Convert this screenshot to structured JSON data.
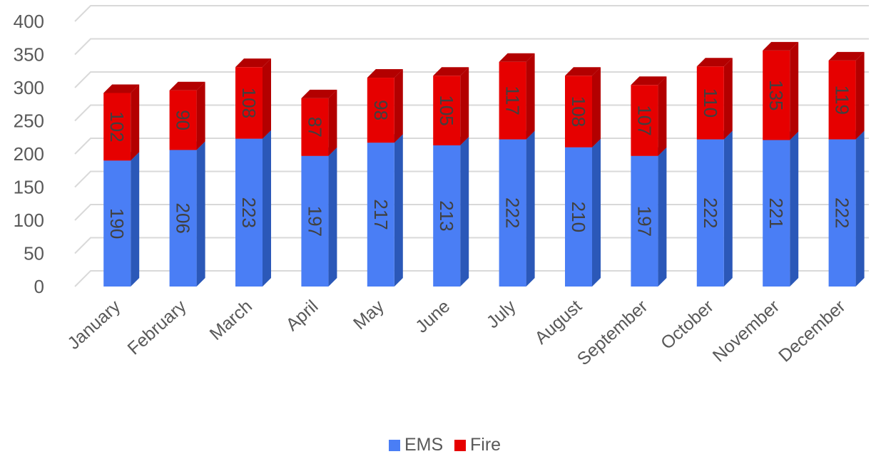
{
  "chart_data": {
    "type": "bar",
    "stacked": true,
    "three_d": true,
    "categories": [
      "January",
      "February",
      "March",
      "April",
      "May",
      "June",
      "July",
      "August",
      "September",
      "October",
      "November",
      "December"
    ],
    "series": [
      {
        "name": "EMS",
        "color": "#4a7ef5",
        "side_color": "#2b58b8",
        "values": [
          190,
          206,
          223,
          197,
          217,
          213,
          222,
          210,
          197,
          222,
          221,
          222
        ]
      },
      {
        "name": "Fire",
        "color": "#e60000",
        "side_color": "#b30000",
        "values": [
          102,
          90,
          108,
          87,
          98,
          105,
          117,
          108,
          107,
          110,
          135,
          119
        ]
      }
    ],
    "ylim": [
      0,
      400
    ],
    "yticks": [
      0,
      50,
      100,
      150,
      200,
      250,
      300,
      350,
      400
    ],
    "grid": true,
    "legend_position": "bottom"
  }
}
